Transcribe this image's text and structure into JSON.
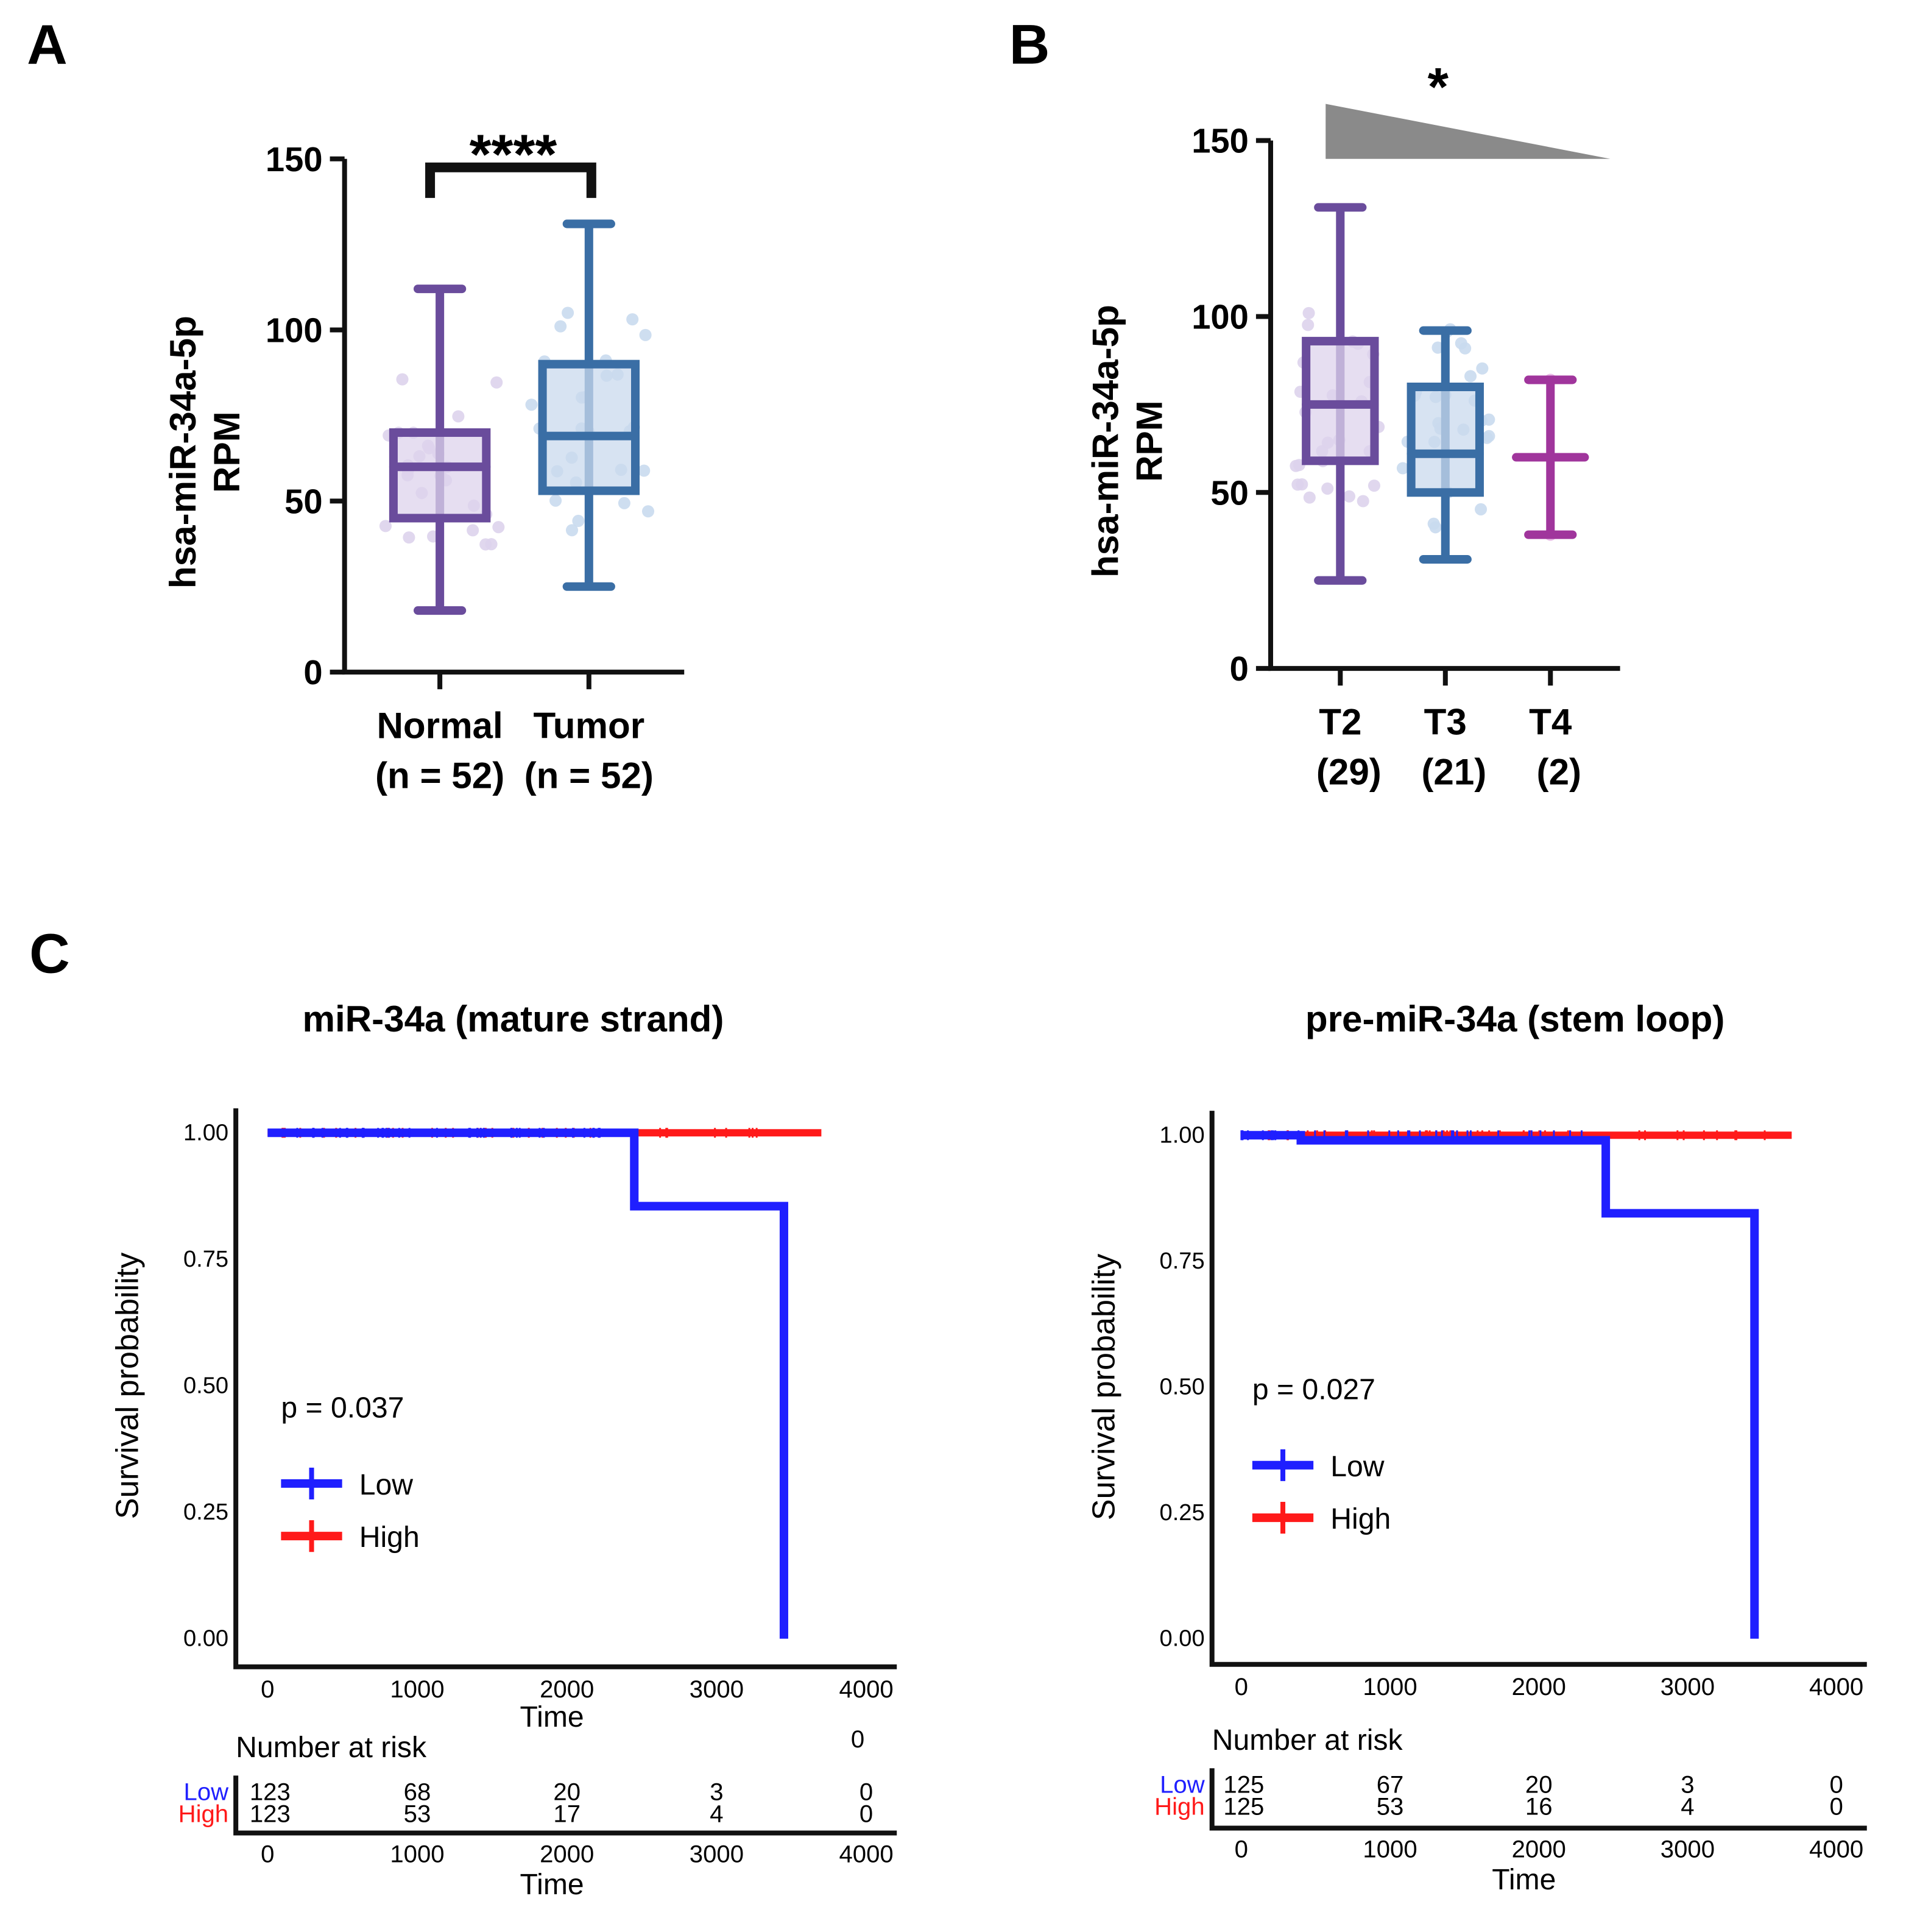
{
  "panel_labels": [
    "A",
    "B",
    "C"
  ],
  "chart_data": [
    {
      "type": "box",
      "panel": "A",
      "ylabel_line1": "hsa-miR-34a-5p",
      "ylabel_line2": "RPM",
      "ylim": [
        0,
        150
      ],
      "yticks": [
        "0",
        "50",
        "100",
        "150"
      ],
      "significance": "****",
      "groups": [
        {
          "name": "Normal",
          "n_label": "(n = 52)",
          "min": 18,
          "q1": 45,
          "median": 60,
          "q3": 70,
          "max": 112,
          "color": "#6a4c9c",
          "fill": "#ddd3ec"
        },
        {
          "name": "Tumor",
          "n_label": "(n = 52)",
          "min": 25,
          "q1": 53,
          "median": 69,
          "q3": 90,
          "max": 131,
          "color": "#3a6ea5",
          "fill": "#c9daee"
        }
      ]
    },
    {
      "type": "box",
      "panel": "B",
      "ylabel_line1": "hsa-miR-34a-5p",
      "ylabel_line2": "RPM",
      "ylim": [
        0,
        150
      ],
      "yticks": [
        "0",
        "50",
        "100",
        "150"
      ],
      "significance": "*",
      "trend": "decreasing",
      "groups": [
        {
          "name": "T2",
          "n_label": "(29)",
          "min": 25,
          "q1": 59,
          "median": 75,
          "q3": 93,
          "max": 131,
          "color": "#6a4c9c",
          "fill": "#ddd3ec"
        },
        {
          "name": "T3",
          "n_label": "(21)",
          "min": 31,
          "q1": 50,
          "median": 61,
          "q3": 80,
          "max": 96,
          "color": "#3a6ea5",
          "fill": "#c9daee"
        },
        {
          "name": "T4",
          "n_label": "(2)",
          "min": 38,
          "median": 60,
          "max": 82,
          "color": "#a0359c",
          "fill": "#e7b6e4"
        }
      ]
    },
    {
      "type": "line",
      "subtype": "kaplan-meier",
      "title": "miR-34a (mature strand)",
      "ylabel": "Survival probability",
      "xlabel": "Time",
      "xlim": [
        0,
        4000
      ],
      "ylim": [
        0,
        1
      ],
      "xticks": [
        "0",
        "1000",
        "2000",
        "3000",
        "4000"
      ],
      "yticks": [
        "0.00",
        "0.25",
        "0.50",
        "0.75",
        "1.00"
      ],
      "p_value": "p = 0.037",
      "stray_label": "0",
      "series": [
        {
          "name": "Low",
          "color": "#1f1fff",
          "steps": [
            [
              0,
              1
            ],
            [
              2450,
              1
            ],
            [
              2450,
              0.855
            ],
            [
              3450,
              0.855
            ],
            [
              3450,
              0
            ]
          ]
        },
        {
          "name": "High",
          "color": "#ff1a1a",
          "steps": [
            [
              0,
              1
            ],
            [
              3700,
              1
            ]
          ]
        }
      ],
      "risk_table": {
        "title": "Number at risk",
        "rows": [
          {
            "name": "Low",
            "values": [
              "123",
              "68",
              "20",
              "3",
              "0"
            ]
          },
          {
            "name": "High",
            "values": [
              "123",
              "53",
              "17",
              "4",
              "0"
            ]
          }
        ]
      }
    },
    {
      "type": "line",
      "subtype": "kaplan-meier",
      "title": "pre-miR-34a (stem loop)",
      "ylabel": "Survival probability",
      "xlabel": "Time",
      "xlim": [
        0,
        4000
      ],
      "ylim": [
        0,
        1
      ],
      "xticks": [
        "0",
        "1000",
        "2000",
        "3000",
        "4000"
      ],
      "yticks": [
        "0.00",
        "0.25",
        "0.50",
        "0.75",
        "1.00"
      ],
      "p_value": "p = 0.027",
      "series": [
        {
          "name": "Low",
          "color": "#1f1fff",
          "steps": [
            [
              0,
              1
            ],
            [
              400,
              1
            ],
            [
              400,
              0.99
            ],
            [
              2450,
              0.99
            ],
            [
              2450,
              0.845
            ],
            [
              3450,
              0.845
            ],
            [
              3450,
              0
            ]
          ]
        },
        {
          "name": "High",
          "color": "#ff1a1a",
          "steps": [
            [
              0,
              1
            ],
            [
              3700,
              1
            ]
          ]
        }
      ],
      "risk_table": {
        "title": "Number at risk",
        "rows": [
          {
            "name": "Low",
            "values": [
              "125",
              "67",
              "20",
              "3",
              "0"
            ]
          },
          {
            "name": "High",
            "values": [
              "125",
              "53",
              "16",
              "4",
              "0"
            ]
          }
        ]
      }
    }
  ]
}
